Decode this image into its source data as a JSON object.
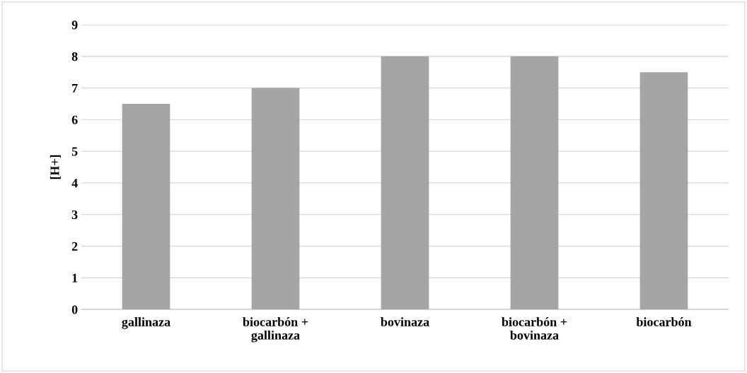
{
  "chart_data": {
    "type": "bar",
    "ylabel": "[H+]",
    "categories": [
      "gallinaza",
      "biocarbón +\ngallinaza",
      "bovinaza",
      "biocarbón +\nbovinaza",
      "biocarbón"
    ],
    "values": [
      6.5,
      7,
      8,
      8,
      7.5
    ],
    "color": "#a5a5a5",
    "ylim": [
      0,
      9
    ],
    "yticks": [
      0,
      1,
      2,
      3,
      4,
      5,
      6,
      7,
      8,
      9
    ],
    "grid": "y"
  }
}
